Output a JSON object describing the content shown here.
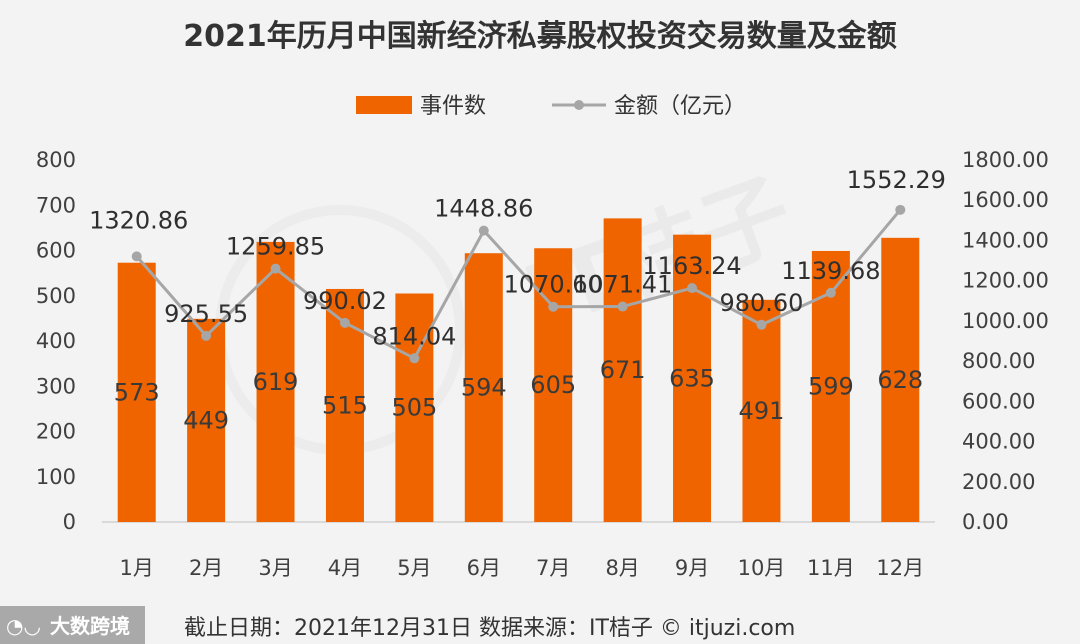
{
  "chart_data": {
    "type": "bar",
    "title": "2021年历月中国新经济私募股权投资交易数量及金额",
    "categories": [
      "1月",
      "2月",
      "3月",
      "4月",
      "5月",
      "6月",
      "7月",
      "8月",
      "9月",
      "10月",
      "11月",
      "12月"
    ],
    "series": [
      {
        "name": "事件数",
        "type": "bar",
        "axis": "left",
        "color": "#f06400",
        "values": [
          573,
          449,
          619,
          515,
          505,
          594,
          605,
          671,
          635,
          491,
          599,
          628
        ],
        "labels": [
          "573",
          "449",
          "619",
          "515",
          "505",
          "594",
          "605",
          "671",
          "635",
          "491",
          "599",
          "628"
        ]
      },
      {
        "name": "金额（亿元）",
        "type": "line",
        "axis": "right",
        "color": "#a6a6a6",
        "values": [
          1320.86,
          925.55,
          1259.85,
          990.02,
          814.04,
          1448.86,
          1070.6,
          1071.41,
          1163.24,
          980.6,
          1139.68,
          1552.29
        ],
        "labels": [
          "1320.86",
          "925.55",
          "1259.85",
          "990.02",
          "814.04",
          "1448.86",
          "1070.60",
          "1071.41",
          "1163.24",
          "980.60",
          "1139.68",
          "1552.29"
        ]
      }
    ],
    "y_left": {
      "ylim": [
        0,
        800
      ],
      "ticks": [
        "0",
        "100",
        "200",
        "300",
        "400",
        "500",
        "600",
        "700",
        "800"
      ]
    },
    "y_right": {
      "ylim": [
        0,
        1800
      ],
      "ticks": [
        "0.00",
        "200.00",
        "400.00",
        "600.00",
        "800.00",
        "1000.00",
        "1200.00",
        "1400.00",
        "1600.00",
        "1800.00"
      ]
    },
    "legend_position": "top-center",
    "grid": false
  },
  "footer": {
    "note": "截止日期：2021年12月31日    数据来源：IT桔子 © itjuzi.com"
  },
  "brand": {
    "name": "大数跨境"
  },
  "watermark": {
    "text": "IT桔子",
    "sub": "ITJUZI.COM"
  }
}
